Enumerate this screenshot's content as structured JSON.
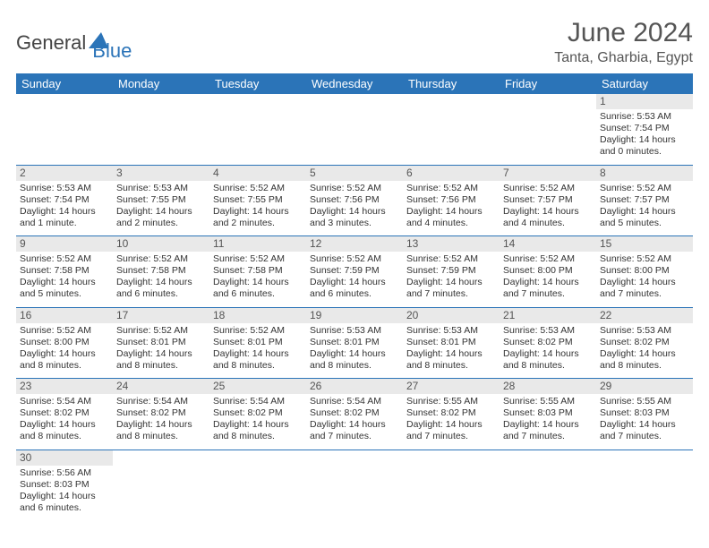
{
  "brand": {
    "part1": "General",
    "part2": "Blue",
    "logo_color": "#2b74b8"
  },
  "title": "June 2024",
  "location": "Tanta, Gharbia, Egypt",
  "colors": {
    "header_bg": "#2b74b8",
    "header_text": "#ffffff",
    "daynum_bg": "#e9e9e9",
    "row_border": "#2b74b8",
    "text": "#333333"
  },
  "weekdays": [
    "Sunday",
    "Monday",
    "Tuesday",
    "Wednesday",
    "Thursday",
    "Friday",
    "Saturday"
  ],
  "weeks": [
    {
      "nums": [
        "",
        "",
        "",
        "",
        "",
        "",
        "1"
      ],
      "cells": [
        null,
        null,
        null,
        null,
        null,
        null,
        {
          "sr": "Sunrise: 5:53 AM",
          "ss": "Sunset: 7:54 PM",
          "d1": "Daylight: 14 hours",
          "d2": "and 0 minutes."
        }
      ]
    },
    {
      "nums": [
        "2",
        "3",
        "4",
        "5",
        "6",
        "7",
        "8"
      ],
      "cells": [
        {
          "sr": "Sunrise: 5:53 AM",
          "ss": "Sunset: 7:54 PM",
          "d1": "Daylight: 14 hours",
          "d2": "and 1 minute."
        },
        {
          "sr": "Sunrise: 5:53 AM",
          "ss": "Sunset: 7:55 PM",
          "d1": "Daylight: 14 hours",
          "d2": "and 2 minutes."
        },
        {
          "sr": "Sunrise: 5:52 AM",
          "ss": "Sunset: 7:55 PM",
          "d1": "Daylight: 14 hours",
          "d2": "and 2 minutes."
        },
        {
          "sr": "Sunrise: 5:52 AM",
          "ss": "Sunset: 7:56 PM",
          "d1": "Daylight: 14 hours",
          "d2": "and 3 minutes."
        },
        {
          "sr": "Sunrise: 5:52 AM",
          "ss": "Sunset: 7:56 PM",
          "d1": "Daylight: 14 hours",
          "d2": "and 4 minutes."
        },
        {
          "sr": "Sunrise: 5:52 AM",
          "ss": "Sunset: 7:57 PM",
          "d1": "Daylight: 14 hours",
          "d2": "and 4 minutes."
        },
        {
          "sr": "Sunrise: 5:52 AM",
          "ss": "Sunset: 7:57 PM",
          "d1": "Daylight: 14 hours",
          "d2": "and 5 minutes."
        }
      ]
    },
    {
      "nums": [
        "9",
        "10",
        "11",
        "12",
        "13",
        "14",
        "15"
      ],
      "cells": [
        {
          "sr": "Sunrise: 5:52 AM",
          "ss": "Sunset: 7:58 PM",
          "d1": "Daylight: 14 hours",
          "d2": "and 5 minutes."
        },
        {
          "sr": "Sunrise: 5:52 AM",
          "ss": "Sunset: 7:58 PM",
          "d1": "Daylight: 14 hours",
          "d2": "and 6 minutes."
        },
        {
          "sr": "Sunrise: 5:52 AM",
          "ss": "Sunset: 7:58 PM",
          "d1": "Daylight: 14 hours",
          "d2": "and 6 minutes."
        },
        {
          "sr": "Sunrise: 5:52 AM",
          "ss": "Sunset: 7:59 PM",
          "d1": "Daylight: 14 hours",
          "d2": "and 6 minutes."
        },
        {
          "sr": "Sunrise: 5:52 AM",
          "ss": "Sunset: 7:59 PM",
          "d1": "Daylight: 14 hours",
          "d2": "and 7 minutes."
        },
        {
          "sr": "Sunrise: 5:52 AM",
          "ss": "Sunset: 8:00 PM",
          "d1": "Daylight: 14 hours",
          "d2": "and 7 minutes."
        },
        {
          "sr": "Sunrise: 5:52 AM",
          "ss": "Sunset: 8:00 PM",
          "d1": "Daylight: 14 hours",
          "d2": "and 7 minutes."
        }
      ]
    },
    {
      "nums": [
        "16",
        "17",
        "18",
        "19",
        "20",
        "21",
        "22"
      ],
      "cells": [
        {
          "sr": "Sunrise: 5:52 AM",
          "ss": "Sunset: 8:00 PM",
          "d1": "Daylight: 14 hours",
          "d2": "and 8 minutes."
        },
        {
          "sr": "Sunrise: 5:52 AM",
          "ss": "Sunset: 8:01 PM",
          "d1": "Daylight: 14 hours",
          "d2": "and 8 minutes."
        },
        {
          "sr": "Sunrise: 5:52 AM",
          "ss": "Sunset: 8:01 PM",
          "d1": "Daylight: 14 hours",
          "d2": "and 8 minutes."
        },
        {
          "sr": "Sunrise: 5:53 AM",
          "ss": "Sunset: 8:01 PM",
          "d1": "Daylight: 14 hours",
          "d2": "and 8 minutes."
        },
        {
          "sr": "Sunrise: 5:53 AM",
          "ss": "Sunset: 8:01 PM",
          "d1": "Daylight: 14 hours",
          "d2": "and 8 minutes."
        },
        {
          "sr": "Sunrise: 5:53 AM",
          "ss": "Sunset: 8:02 PM",
          "d1": "Daylight: 14 hours",
          "d2": "and 8 minutes."
        },
        {
          "sr": "Sunrise: 5:53 AM",
          "ss": "Sunset: 8:02 PM",
          "d1": "Daylight: 14 hours",
          "d2": "and 8 minutes."
        }
      ]
    },
    {
      "nums": [
        "23",
        "24",
        "25",
        "26",
        "27",
        "28",
        "29"
      ],
      "cells": [
        {
          "sr": "Sunrise: 5:54 AM",
          "ss": "Sunset: 8:02 PM",
          "d1": "Daylight: 14 hours",
          "d2": "and 8 minutes."
        },
        {
          "sr": "Sunrise: 5:54 AM",
          "ss": "Sunset: 8:02 PM",
          "d1": "Daylight: 14 hours",
          "d2": "and 8 minutes."
        },
        {
          "sr": "Sunrise: 5:54 AM",
          "ss": "Sunset: 8:02 PM",
          "d1": "Daylight: 14 hours",
          "d2": "and 8 minutes."
        },
        {
          "sr": "Sunrise: 5:54 AM",
          "ss": "Sunset: 8:02 PM",
          "d1": "Daylight: 14 hours",
          "d2": "and 7 minutes."
        },
        {
          "sr": "Sunrise: 5:55 AM",
          "ss": "Sunset: 8:02 PM",
          "d1": "Daylight: 14 hours",
          "d2": "and 7 minutes."
        },
        {
          "sr": "Sunrise: 5:55 AM",
          "ss": "Sunset: 8:03 PM",
          "d1": "Daylight: 14 hours",
          "d2": "and 7 minutes."
        },
        {
          "sr": "Sunrise: 5:55 AM",
          "ss": "Sunset: 8:03 PM",
          "d1": "Daylight: 14 hours",
          "d2": "and 7 minutes."
        }
      ]
    },
    {
      "nums": [
        "30",
        "",
        "",
        "",
        "",
        "",
        ""
      ],
      "cells": [
        {
          "sr": "Sunrise: 5:56 AM",
          "ss": "Sunset: 8:03 PM",
          "d1": "Daylight: 14 hours",
          "d2": "and 6 minutes."
        },
        null,
        null,
        null,
        null,
        null,
        null
      ]
    }
  ]
}
